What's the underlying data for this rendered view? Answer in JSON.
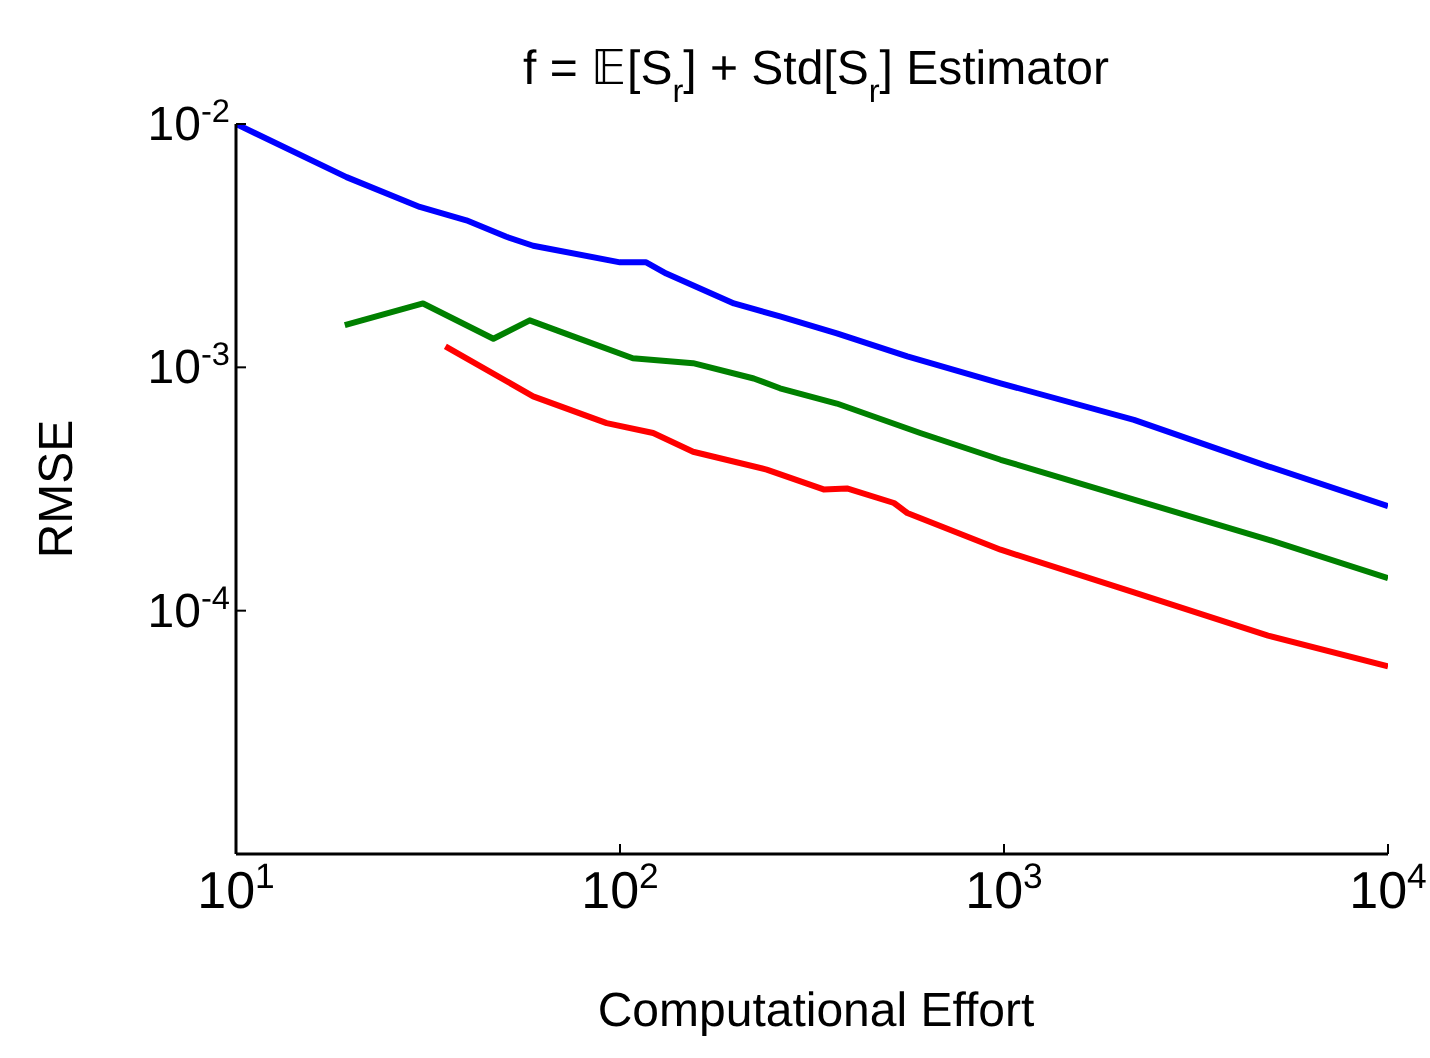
{
  "chart_data": {
    "type": "line",
    "title": "f = 𝔼[S$_{r}$] + Std[S$_{r}$]   Estimator",
    "xlabel": "Computational Effort",
    "ylabel": "RMSE",
    "log": "xy",
    "grid": false,
    "legend": false,
    "marker": "none",
    "line_style": "solid",
    "xlim": [
      10,
      10000
    ],
    "ylim": [
      1e-05,
      0.01
    ],
    "xticks": [
      {
        "value": 10,
        "label": "10$^{1}$"
      },
      {
        "value": 100,
        "label": "10$^{2}$"
      },
      {
        "value": 1000,
        "label": "10$^{3}$"
      },
      {
        "value": 10000,
        "label": "10$^{4}$"
      }
    ],
    "yticks": [
      {
        "value": 1e-05,
        "label": null
      },
      {
        "value": 0.0001,
        "label": "10$^{-4}$"
      },
      {
        "value": 0.001,
        "label": "10$^{-3}$"
      },
      {
        "value": 0.01,
        "label": "10$^{-2}$"
      }
    ],
    "series": [
      {
        "color": "#0000ff",
        "x": [
          10,
          19.4,
          30.1,
          39.8,
          50.6,
          59.4,
          100,
          117,
          132,
          198,
          261,
          367,
          560,
          980,
          2180,
          4870,
          10000
        ],
        "values": [
          0.01,
          0.00605,
          0.00456,
          0.00402,
          0.00344,
          0.00316,
          0.0027,
          0.0027,
          0.00243,
          0.00183,
          0.00162,
          0.00138,
          0.00111,
          0.00086,
          0.000608,
          0.000392,
          0.000269
        ]
      },
      {
        "color": "#008000",
        "x": [
          19.2,
          30.7,
          46.8,
          58.2,
          75.5,
          108,
          155,
          223,
          261,
          367,
          605,
          980,
          2180,
          4870,
          10000
        ],
        "values": [
          0.00149,
          0.00183,
          0.00131,
          0.00156,
          0.00134,
          0.00109,
          0.00104,
          0.0009,
          0.00082,
          0.00071,
          0.000537,
          0.000417,
          0.000286,
          0.000196,
          0.000136
        ]
      },
      {
        "color": "#ff0000",
        "x": [
          35.1,
          59.4,
          92.3,
          122,
          155,
          241,
          339,
          390,
          517,
          560,
          980,
          2180,
          4870,
          10000
        ],
        "values": [
          0.00122,
          0.00076,
          0.00059,
          0.000537,
          0.00045,
          0.00038,
          0.000315,
          0.000318,
          0.000277,
          0.000252,
          0.000178,
          0.000119,
          7.9e-05,
          5.9e-05
        ]
      }
    ]
  }
}
